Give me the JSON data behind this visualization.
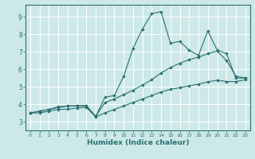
{
  "xlabel": "Humidex (Indice chaleur)",
  "bg_color": "#cde8e8",
  "grid_color": "#ffffff",
  "line_color": "#2a7070",
  "xlim": [
    -0.5,
    23.5
  ],
  "ylim": [
    2.5,
    9.7
  ],
  "xticks": [
    0,
    1,
    2,
    3,
    4,
    5,
    6,
    7,
    8,
    9,
    10,
    11,
    12,
    13,
    14,
    15,
    16,
    17,
    18,
    19,
    20,
    21,
    22,
    23
  ],
  "yticks": [
    3,
    4,
    5,
    6,
    7,
    8,
    9
  ],
  "line1_x": [
    0,
    1,
    2,
    3,
    4,
    5,
    6,
    7,
    8,
    9,
    10,
    11,
    12,
    13,
    14,
    15,
    16,
    17,
    18,
    19,
    20,
    21,
    22,
    23
  ],
  "line1_y": [
    3.5,
    3.6,
    3.7,
    3.8,
    3.9,
    3.9,
    3.9,
    3.3,
    4.4,
    4.5,
    5.6,
    7.2,
    8.3,
    9.2,
    9.3,
    7.5,
    7.6,
    7.1,
    6.8,
    8.2,
    7.1,
    6.9,
    5.5,
    5.5
  ],
  "line2_x": [
    0,
    1,
    2,
    3,
    4,
    5,
    6,
    7,
    8,
    9,
    10,
    11,
    12,
    13,
    14,
    15,
    16,
    17,
    18,
    19,
    20,
    21,
    22,
    23
  ],
  "line2_y": [
    3.5,
    3.6,
    3.7,
    3.85,
    3.9,
    3.92,
    3.93,
    3.3,
    4.1,
    4.3,
    4.55,
    4.8,
    5.1,
    5.4,
    5.8,
    6.1,
    6.35,
    6.55,
    6.7,
    6.9,
    7.05,
    6.5,
    5.6,
    5.5
  ],
  "line3_x": [
    0,
    1,
    2,
    3,
    4,
    5,
    6,
    7,
    8,
    9,
    10,
    11,
    12,
    13,
    14,
    15,
    16,
    17,
    18,
    19,
    20,
    21,
    22,
    23
  ],
  "line3_y": [
    3.5,
    3.5,
    3.6,
    3.7,
    3.72,
    3.78,
    3.82,
    3.28,
    3.5,
    3.7,
    3.9,
    4.1,
    4.3,
    4.5,
    4.7,
    4.85,
    4.95,
    5.05,
    5.15,
    5.28,
    5.38,
    5.3,
    5.3,
    5.4
  ]
}
